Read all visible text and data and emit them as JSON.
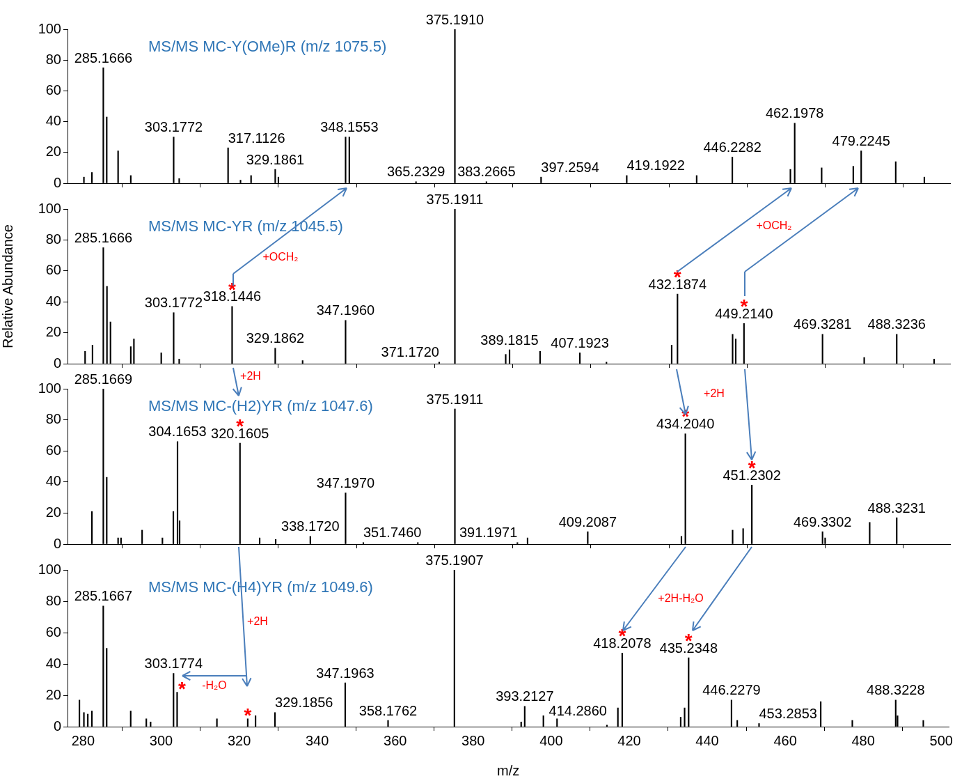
{
  "chart_data": [
    {
      "type": "bar",
      "title": "MS/MS MC-Y(OMe)R (m/z 1075.5)",
      "color": "#000000",
      "tick_labels": "y",
      "x": [
        280.2,
        282.25,
        285.1666,
        286.04,
        288.95,
        292.2,
        303.1772,
        304.6,
        317.1126,
        320.3,
        323.0,
        329.1861,
        330.0,
        347.2,
        348.1553,
        365.2329,
        375.191,
        383.2665,
        397.2594,
        419.1922,
        437.1,
        446.2282,
        461.1,
        462.1978,
        469.1,
        477.2,
        479.2245,
        488.07,
        495.4
      ],
      "values": [
        4,
        7,
        75,
        43,
        21,
        5,
        30,
        3,
        23,
        2,
        5,
        9,
        4,
        30,
        30,
        1,
        100,
        1,
        4,
        5,
        5,
        17,
        9,
        39,
        10,
        11,
        21,
        14,
        4
      ],
      "xlim": [
        276,
        502
      ],
      "xticks": [
        280,
        300,
        320,
        340,
        360,
        380,
        400,
        420,
        440,
        460,
        480,
        500
      ],
      "ylim": [
        0,
        100
      ],
      "yticks": [
        0,
        20,
        40,
        60,
        80,
        100
      ],
      "annotations": [
        {
          "text": "285.1666",
          "x": 285.1666,
          "y": 75
        },
        {
          "text": "303.1772",
          "x": 303.1772,
          "y": 30
        },
        {
          "text": "317.1126",
          "x": 317.1126,
          "y": 23
        },
        {
          "text": "329.1861",
          "x": 329.1861,
          "y": 9
        },
        {
          "text": "348.1553",
          "x": 348.1553,
          "y": 30
        },
        {
          "text": "365.2329",
          "x": 365.2329,
          "y": 1
        },
        {
          "text": "375.1910",
          "x": 375.191,
          "y": 100
        },
        {
          "text": "383.2665",
          "x": 383.2665,
          "y": 1
        },
        {
          "text": "397.2594",
          "x": 397.2594,
          "y": 4
        },
        {
          "text": "419.1922",
          "x": 419.1922,
          "y": 5
        },
        {
          "text": "446.2282",
          "x": 446.2282,
          "y": 17
        },
        {
          "text": "462.1978",
          "x": 462.1978,
          "y": 39
        },
        {
          "text": "479.2245",
          "x": 479.2245,
          "y": 21
        }
      ]
    },
    {
      "type": "bar",
      "title": "MS/MS MC-YR (m/z 1045.5)",
      "ylabel": "Relative Abundance",
      "color": "#000000",
      "tick_labels": "y",
      "x": [
        280.5,
        282.4,
        285.1666,
        286.1,
        287.0,
        292.2,
        293.0,
        300.0,
        303.1772,
        304.6,
        318.1446,
        329.1862,
        336.2,
        347.196,
        371.172,
        375.1911,
        388.2,
        389.1815,
        397.0,
        407.1923,
        414.0,
        430.7,
        432.1874,
        446.3,
        447.1,
        449.214,
        469.3281,
        480.0,
        488.3236,
        497.9
      ],
      "values": [
        8,
        12,
        75,
        50,
        27,
        11,
        16,
        7,
        33,
        3,
        37,
        10,
        2,
        28,
        1,
        100,
        6,
        9,
        8,
        7,
        1,
        12,
        45,
        19,
        16,
        26,
        19,
        4,
        19,
        3
      ],
      "xlim": [
        276,
        502
      ],
      "xticks": [
        280,
        300,
        320,
        340,
        360,
        380,
        400,
        420,
        440,
        460,
        480,
        500
      ],
      "ylim": [
        0,
        100
      ],
      "yticks": [
        0,
        20,
        40,
        60,
        80,
        100
      ],
      "annotations": [
        {
          "text": "285.1666",
          "x": 285.1666,
          "y": 75
        },
        {
          "text": "303.1772",
          "x": 303.1772,
          "y": 33
        },
        {
          "text": "318.1446",
          "x": 318.1446,
          "y": 37
        },
        {
          "text": "*",
          "x": 318.1446,
          "y": 37
        },
        {
          "text": "329.1862",
          "x": 329.1862,
          "y": 10
        },
        {
          "text": "347.1960",
          "x": 347.196,
          "y": 28
        },
        {
          "text": "371.1720",
          "x": 371.172,
          "y": 1
        },
        {
          "text": "375.1911",
          "x": 375.1911,
          "y": 100
        },
        {
          "text": "389.1815",
          "x": 389.1815,
          "y": 9
        },
        {
          "text": "407.1923",
          "x": 407.1923,
          "y": 7
        },
        {
          "text": "432.1874",
          "x": 432.1874,
          "y": 45
        },
        {
          "text": "*",
          "x": 432.1874,
          "y": 45
        },
        {
          "text": "449.2140",
          "x": 449.214,
          "y": 26
        },
        {
          "text": "*",
          "x": 449.214,
          "y": 26
        },
        {
          "text": "469.3281",
          "x": 469.3281,
          "y": 19
        },
        {
          "text": "488.3236",
          "x": 488.3236,
          "y": 19
        },
        "+OCH₂",
        "+OCH₂"
      ]
    },
    {
      "type": "bar",
      "title": "MS/MS MC-(H2)YR (m/z 1047.6)",
      "color": "#000000",
      "tick_labels": "y",
      "x": [
        282.25,
        285.1669,
        286.04,
        288.95,
        289.7,
        295.1,
        300.3,
        303.1,
        304.1653,
        304.7,
        320.1605,
        325.2,
        329.3,
        338.172,
        347.197,
        351.746,
        365.7,
        375.1911,
        391.1971,
        393.8,
        409.2087,
        433.2,
        434.204,
        446.3,
        449.0,
        451.2302,
        469.3302,
        470.0,
        481.4,
        488.3231
      ],
      "values": [
        21,
        100,
        43,
        4,
        4,
        9,
        4,
        21,
        66,
        15,
        65,
        4,
        3,
        5,
        33,
        1,
        1,
        87,
        1,
        4,
        8,
        5,
        71,
        9,
        10,
        38,
        8,
        4,
        14,
        17
      ],
      "xlim": [
        276,
        502
      ],
      "xticks": [
        280,
        300,
        320,
        340,
        360,
        380,
        400,
        420,
        440,
        460,
        480,
        500
      ],
      "ylim": [
        0,
        100
      ],
      "yticks": [
        0,
        20,
        40,
        60,
        80,
        100
      ],
      "annotations": [
        {
          "text": "285.1669",
          "x": 285.1669,
          "y": 100
        },
        {
          "text": "304.1653",
          "x": 304.1653,
          "y": 66
        },
        {
          "text": "320.1605",
          "x": 320.1605,
          "y": 65
        },
        {
          "text": "*",
          "x": 320.1605,
          "y": 65
        },
        {
          "text": "338.1720",
          "x": 338.172,
          "y": 5
        },
        {
          "text": "347.1970",
          "x": 347.197,
          "y": 33
        },
        {
          "text": "351.7460",
          "x": 351.746,
          "y": 1
        },
        {
          "text": "375.1911",
          "x": 375.1911,
          "y": 87
        },
        {
          "text": "391.1971",
          "x": 391.1971,
          "y": 1
        },
        {
          "text": "409.2087",
          "x": 409.2087,
          "y": 8
        },
        {
          "text": "434.2040",
          "x": 434.204,
          "y": 71
        },
        {
          "text": "*",
          "x": 434.204,
          "y": 71
        },
        {
          "text": "451.2302",
          "x": 451.2302,
          "y": 38
        },
        {
          "text": "*",
          "x": 451.2302,
          "y": 38
        },
        {
          "text": "469.3302",
          "x": 469.3302,
          "y": 8
        },
        {
          "text": "488.3231",
          "x": 488.3231,
          "y": 17
        },
        "+2H",
        "+2H"
      ]
    },
    {
      "type": "bar",
      "title": "MS/MS MC-(H4)YR (m/z 1049.6)",
      "xlabel": "m/z",
      "color": "#000000",
      "x": [
        279.05,
        280.2,
        281.2,
        282.25,
        285.1667,
        286.04,
        292.2,
        296.2,
        297.3,
        303.1774,
        304.1,
        314.3,
        322.2,
        324.2,
        329.1856,
        347.1963,
        358.1762,
        375.1907,
        392.3,
        393.2127,
        398.0,
        401.5,
        414.286,
        417.1,
        418.2078,
        433.2,
        434.2,
        435.2348,
        446.2279,
        447.7,
        453.2853,
        469.1,
        477.2,
        488.3228,
        488.8,
        495.4
      ],
      "values": [
        17,
        9,
        8,
        10,
        77,
        50,
        10,
        5,
        3,
        34,
        22,
        5,
        5,
        7,
        9,
        28,
        4,
        100,
        3,
        13,
        7,
        5,
        1,
        12,
        47,
        6,
        12,
        44,
        17,
        4,
        2,
        16,
        4,
        17,
        7,
        4
      ],
      "xlim": [
        276,
        502
      ],
      "xticks": [
        280,
        300,
        320,
        340,
        360,
        380,
        400,
        420,
        440,
        460,
        480,
        500
      ],
      "ylim": [
        0,
        100
      ],
      "yticks": [
        0,
        20,
        40,
        60,
        80,
        100
      ],
      "annotations": [
        {
          "text": "285.1667",
          "x": 285.1667,
          "y": 77
        },
        {
          "text": "303.1774",
          "x": 303.1774,
          "y": 34
        },
        {
          "text": "*",
          "x": 304.1,
          "y": 22
        },
        {
          "text": "*",
          "x": 322.2,
          "y": 5
        },
        {
          "text": "329.1856",
          "x": 329.1856,
          "y": 9
        },
        {
          "text": "347.1963",
          "x": 347.1963,
          "y": 28
        },
        {
          "text": "358.1762",
          "x": 358.1762,
          "y": 4
        },
        {
          "text": "375.1907",
          "x": 375.1907,
          "y": 100
        },
        {
          "text": "393.2127",
          "x": 393.2127,
          "y": 13
        },
        {
          "text": "414.2860",
          "x": 414.286,
          "y": 1
        },
        {
          "text": "418.2078",
          "x": 418.2078,
          "y": 47
        },
        {
          "text": "*",
          "x": 418.2078,
          "y": 47
        },
        {
          "text": "435.2348",
          "x": 435.2348,
          "y": 44
        },
        {
          "text": "*",
          "x": 435.2348,
          "y": 44
        },
        {
          "text": "446.2279",
          "x": 446.2279,
          "y": 17
        },
        {
          "text": "453.2853",
          "x": 453.2853,
          "y": 2
        },
        {
          "text": "488.3228",
          "x": 488.3228,
          "y": 17
        },
        "+2H",
        "+2H-H₂O",
        "-H₂O"
      ]
    }
  ]
}
